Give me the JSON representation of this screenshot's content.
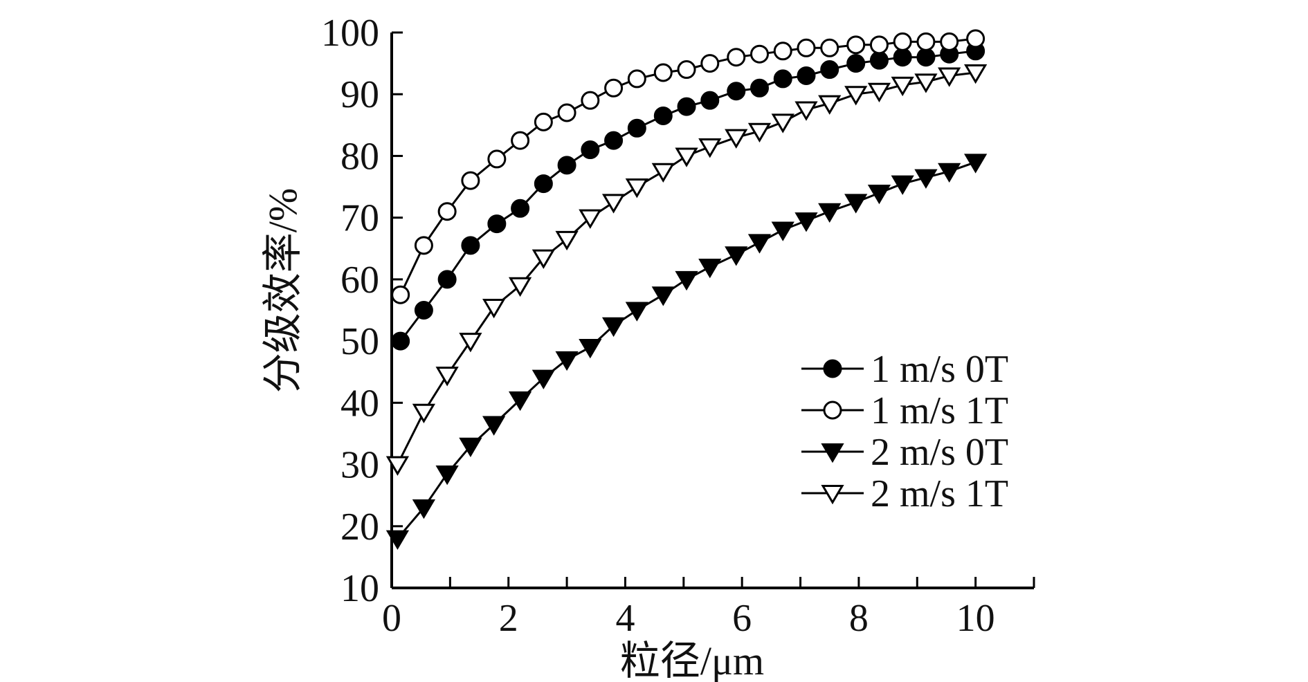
{
  "chart_data": {
    "type": "line",
    "title": "",
    "xlabel": "粒径/μm",
    "ylabel": "分级效率/%",
    "xlim": [
      0,
      11
    ],
    "ylim": [
      10,
      100
    ],
    "xticks": [
      "0",
      "2",
      "4",
      "6",
      "8",
      "10"
    ],
    "xtick_values": [
      0,
      2,
      4,
      6,
      8,
      10
    ],
    "yticks": [
      "10",
      "20",
      "30",
      "40",
      "50",
      "60",
      "70",
      "80",
      "90",
      "100"
    ],
    "ytick_values": [
      10,
      20,
      30,
      40,
      50,
      60,
      70,
      80,
      90,
      100
    ],
    "grid": false,
    "legend_position": "bottom-right",
    "series": [
      {
        "name": "1 m/s 0T",
        "marker": "circle-filled",
        "x": [
          0.15,
          0.55,
          0.95,
          1.35,
          1.8,
          2.2,
          2.6,
          3.0,
          3.4,
          3.8,
          4.2,
          4.65,
          5.05,
          5.45,
          5.9,
          6.3,
          6.7,
          7.1,
          7.5,
          7.95,
          8.35,
          8.75,
          9.15,
          9.55,
          10.0
        ],
        "y": [
          50,
          55,
          60,
          65.5,
          69,
          71.5,
          75.5,
          78.5,
          81,
          82.5,
          84.5,
          86.5,
          88,
          89,
          90.5,
          91,
          92.5,
          93,
          94,
          95,
          95.5,
          96,
          96,
          96.5,
          97
        ]
      },
      {
        "name": "1 m/s 1T",
        "marker": "circle-open",
        "x": [
          0.15,
          0.55,
          0.95,
          1.35,
          1.8,
          2.2,
          2.6,
          3.0,
          3.4,
          3.8,
          4.2,
          4.65,
          5.05,
          5.45,
          5.9,
          6.3,
          6.7,
          7.1,
          7.5,
          7.95,
          8.35,
          8.75,
          9.15,
          9.55,
          10.0
        ],
        "y": [
          57.5,
          65.5,
          71,
          76,
          79.5,
          82.5,
          85.5,
          87,
          89,
          91,
          92.5,
          93.5,
          94,
          95,
          96,
          96.5,
          97,
          97.5,
          97.5,
          98,
          98,
          98.5,
          98.5,
          98.5,
          99
        ]
      },
      {
        "name": "2 m/s 0T",
        "marker": "triangle-down-filled",
        "x": [
          0.1,
          0.55,
          0.95,
          1.35,
          1.75,
          2.2,
          2.6,
          3.0,
          3.4,
          3.8,
          4.2,
          4.65,
          5.05,
          5.45,
          5.9,
          6.3,
          6.7,
          7.1,
          7.5,
          7.95,
          8.35,
          8.75,
          9.15,
          9.55,
          10.0
        ],
        "y": [
          18,
          23,
          28.5,
          33,
          36.5,
          40.5,
          44,
          47,
          49,
          52.5,
          55,
          57.5,
          60,
          62,
          64,
          66,
          68,
          69.5,
          71,
          72.5,
          74,
          75.5,
          76.5,
          77.5,
          79
        ]
      },
      {
        "name": "2 m/s 1T",
        "marker": "triangle-down-open",
        "x": [
          0.1,
          0.55,
          0.95,
          1.35,
          1.75,
          2.2,
          2.6,
          3.0,
          3.4,
          3.8,
          4.2,
          4.65,
          5.05,
          5.45,
          5.9,
          6.3,
          6.7,
          7.1,
          7.5,
          7.95,
          8.35,
          8.75,
          9.15,
          9.55,
          10.0
        ],
        "y": [
          30,
          38.5,
          44.5,
          50,
          55.5,
          59,
          63.5,
          66.5,
          70,
          72.5,
          75,
          77.5,
          80,
          81.5,
          83,
          84,
          85.5,
          87.5,
          88.5,
          90,
          90.5,
          91.5,
          92,
          93,
          93.5
        ]
      }
    ]
  }
}
